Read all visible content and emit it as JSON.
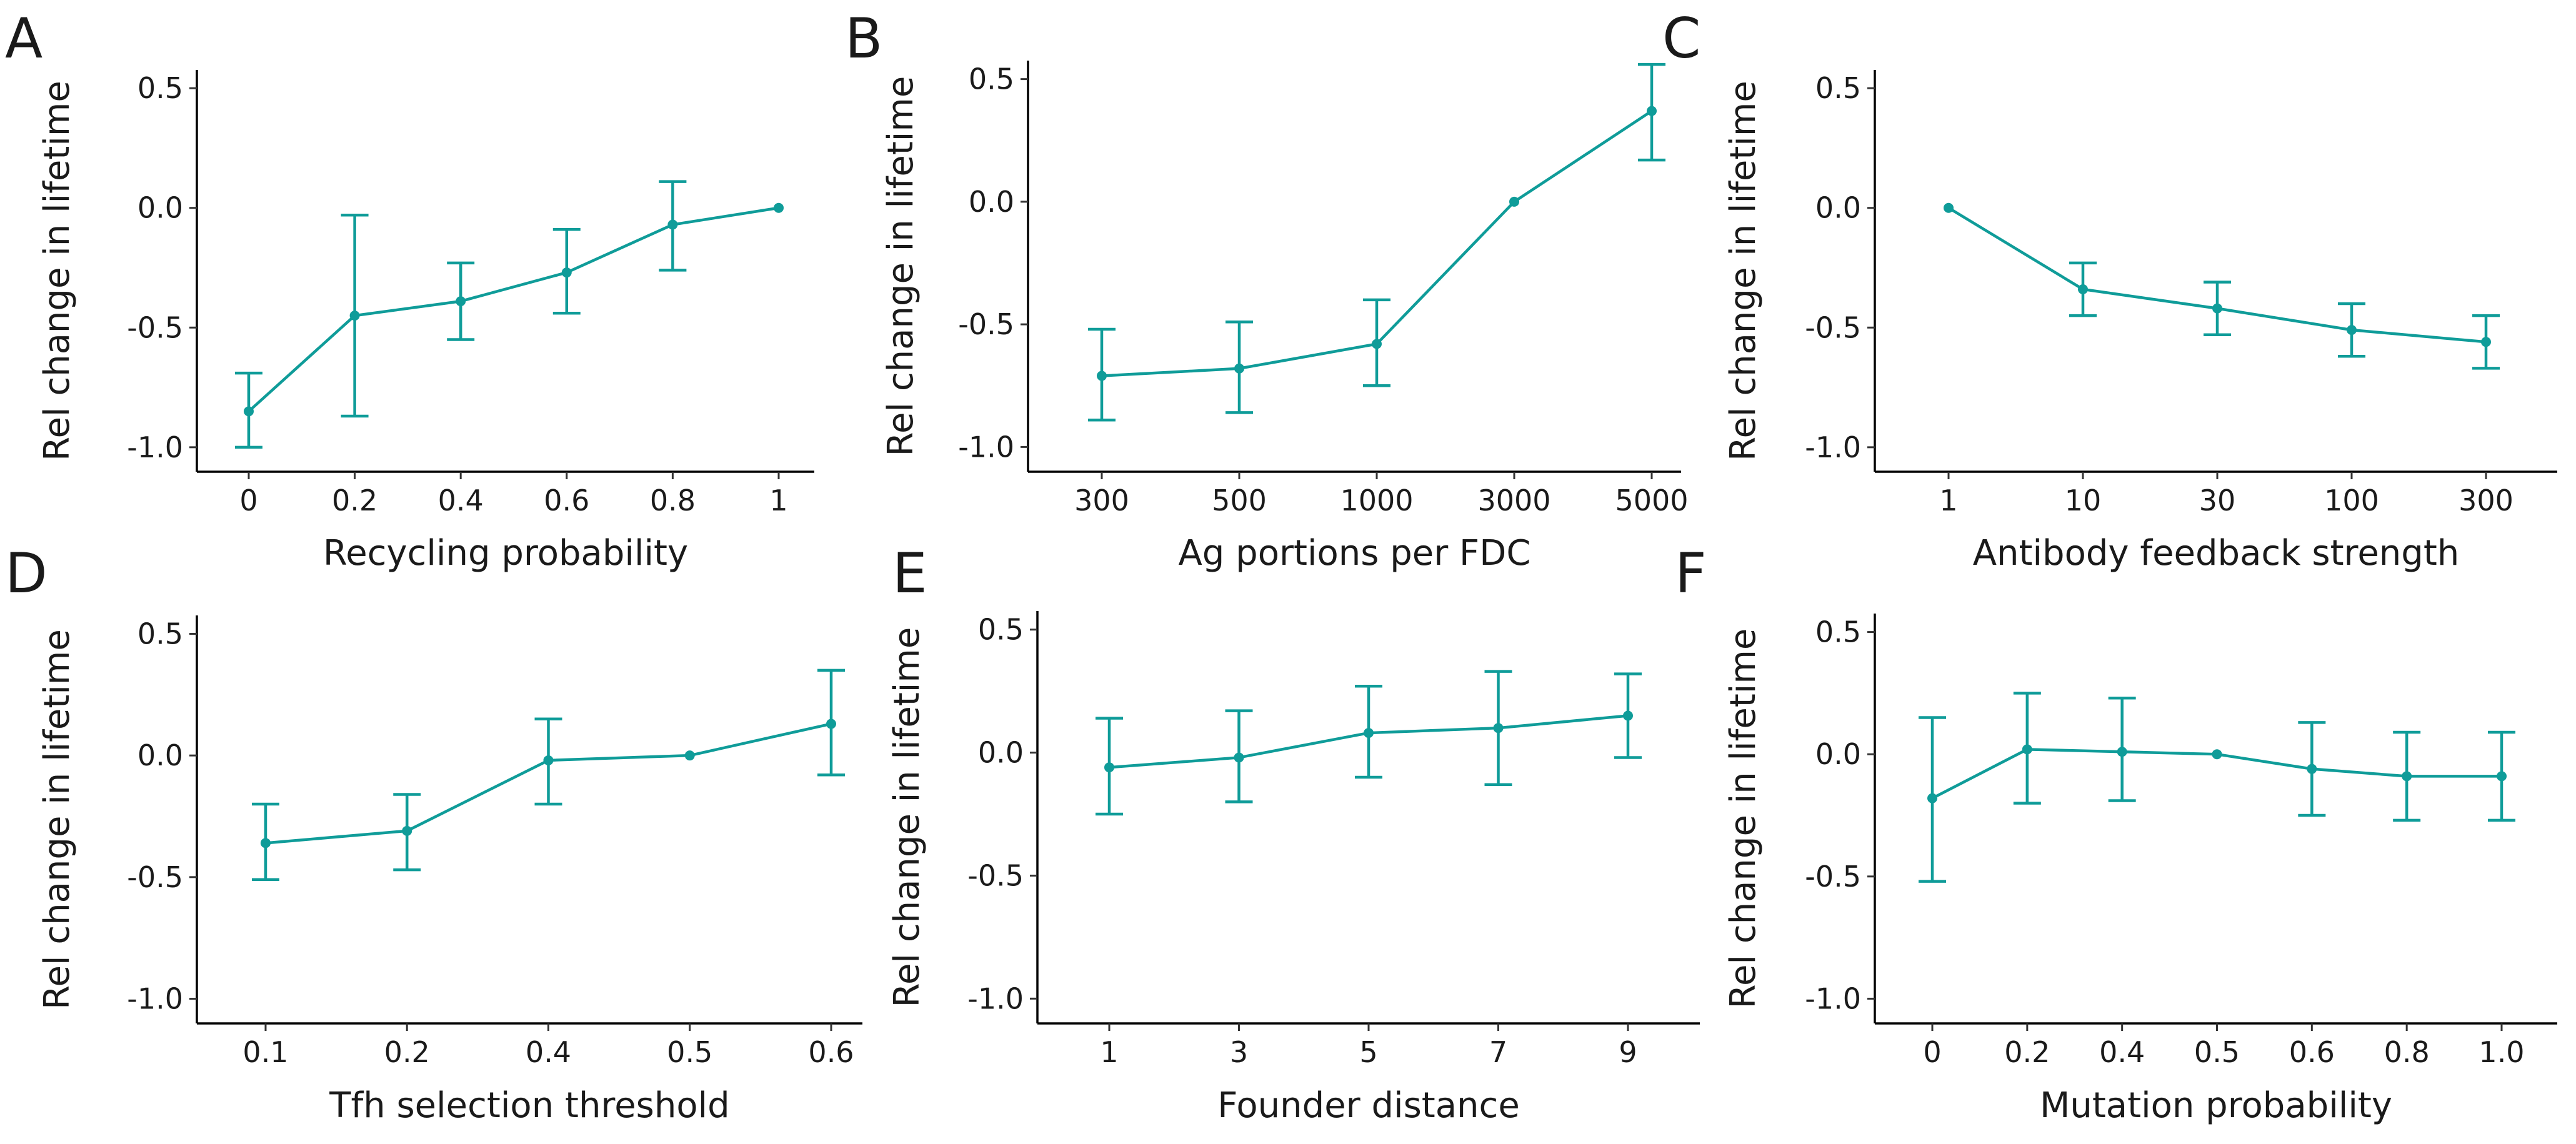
{
  "figure": {
    "series_color": "#0f9c99"
  },
  "chart_data": [
    {
      "panel": "A",
      "type": "line",
      "xlabel": "Recycling probability",
      "ylabel": "Rel change in lifetime",
      "categories": [
        "0",
        "0.2",
        "0.4",
        "0.6",
        "0.8",
        "1"
      ],
      "values": [
        -0.85,
        -0.45,
        -0.39,
        -0.27,
        -0.07,
        0.0
      ],
      "error_low": [
        -1.0,
        -0.87,
        -0.55,
        -0.44,
        -0.26,
        0.0
      ],
      "error_high": [
        -0.69,
        -0.03,
        -0.23,
        -0.09,
        0.11,
        0.0
      ],
      "ylim": [
        -1.05,
        0.55
      ],
      "yticks": [
        -1.0,
        -0.5,
        0.0,
        0.5
      ],
      "ytick_labels": [
        "-1.0",
        "-0.5",
        "0.0",
        "0.5"
      ],
      "grid": false
    },
    {
      "panel": "B",
      "type": "line",
      "xlabel": "Ag portions per FDC",
      "ylabel": "Rel change in lifetime",
      "categories": [
        "300",
        "500",
        "1000",
        "3000",
        "5000"
      ],
      "values": [
        -0.71,
        -0.68,
        -0.58,
        0.0,
        0.37
      ],
      "error_low": [
        -0.89,
        -0.86,
        -0.75,
        0.0,
        0.17
      ],
      "error_high": [
        -0.52,
        -0.49,
        -0.4,
        0.0,
        0.56
      ],
      "ylim": [
        -1.05,
        0.55
      ],
      "yticks": [
        -1.0,
        -0.5,
        0.0,
        0.5
      ],
      "ytick_labels": [
        "-1.0",
        "-0.5",
        "0.0",
        "0.5"
      ],
      "grid": false
    },
    {
      "panel": "C",
      "type": "line",
      "xlabel": "Antibody feedback strength",
      "ylabel": "Rel change in lifetime",
      "categories": [
        "1",
        "10",
        "30",
        "100",
        "300"
      ],
      "values": [
        0.0,
        -0.34,
        -0.42,
        -0.51,
        -0.56
      ],
      "error_low": [
        0.0,
        -0.45,
        -0.53,
        -0.62,
        -0.67
      ],
      "error_high": [
        0.0,
        -0.23,
        -0.31,
        -0.4,
        -0.45
      ],
      "ylim": [
        -1.05,
        0.55
      ],
      "yticks": [
        -1.0,
        -0.5,
        0.0,
        0.5
      ],
      "ytick_labels": [
        "-1.0",
        "-0.5",
        "0.0",
        "0.5"
      ],
      "grid": false
    },
    {
      "panel": "D",
      "type": "line",
      "xlabel": "Tfh selection threshold",
      "ylabel": "Rel change in lifetime",
      "categories": [
        "0.1",
        "0.2",
        "0.4",
        "0.5",
        "0.6"
      ],
      "values": [
        -0.36,
        -0.31,
        -0.02,
        0.0,
        0.13
      ],
      "error_low": [
        -0.51,
        -0.47,
        -0.2,
        0.0,
        -0.08
      ],
      "error_high": [
        -0.2,
        -0.16,
        0.15,
        0.0,
        0.35
      ],
      "ylim": [
        -1.05,
        0.55
      ],
      "yticks": [
        -1.0,
        -0.5,
        0.0,
        0.5
      ],
      "ytick_labels": [
        "-1.0",
        "-0.5",
        "0.0",
        "0.5"
      ],
      "grid": false
    },
    {
      "panel": "E",
      "type": "line",
      "xlabel": "Founder distance",
      "ylabel": "Rel change in lifetime",
      "categories": [
        "1",
        "3",
        "5",
        "7",
        "9"
      ],
      "values": [
        -0.06,
        -0.02,
        0.08,
        0.1,
        0.15
      ],
      "error_low": [
        -0.25,
        -0.2,
        -0.1,
        -0.13,
        -0.02
      ],
      "error_high": [
        0.14,
        0.17,
        0.27,
        0.33,
        0.32
      ],
      "ylim": [
        -1.05,
        0.55
      ],
      "yticks": [
        -1.0,
        -0.5,
        0.0,
        0.5
      ],
      "ytick_labels": [
        "-1.0",
        "-0.5",
        "0.0",
        "0.5"
      ],
      "grid": false
    },
    {
      "panel": "F",
      "type": "line",
      "xlabel": "Mutation probability",
      "ylabel": "Rel change in lifetime",
      "categories": [
        "0",
        "0.2",
        "0.4",
        "0.5",
        "0.6",
        "0.8",
        "1.0"
      ],
      "values": [
        -0.18,
        0.02,
        0.01,
        0.0,
        -0.06,
        -0.09,
        -0.09
      ],
      "error_low": [
        -0.52,
        -0.2,
        -0.19,
        0.0,
        -0.25,
        -0.27,
        -0.27
      ],
      "error_high": [
        0.15,
        0.25,
        0.23,
        0.0,
        0.13,
        0.09,
        0.09
      ],
      "ylim": [
        -1.05,
        0.55
      ],
      "yticks": [
        -1.0,
        -0.5,
        0.0,
        0.5
      ],
      "ytick_labels": [
        "-1.0",
        "-0.5",
        "0.0",
        "0.5"
      ],
      "grid": false
    }
  ]
}
